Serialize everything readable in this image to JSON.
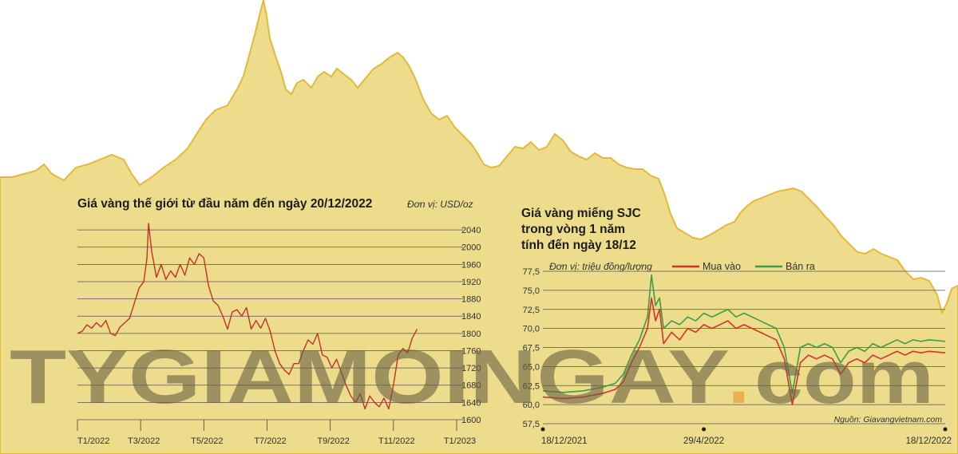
{
  "colors": {
    "background_area": "#ecdc8c",
    "area_outline": "#e3b93a",
    "world_line": "#c4302a",
    "sjc_buy": "#d5322a",
    "sjc_sell": "#3e9b4b",
    "grid": "#555555",
    "watermark_text": "#6b6043",
    "watermark_accent": "#e8922a"
  },
  "watermark": {
    "main": "TYGIAMOINGAY",
    "dot": ".",
    "suffix": "com"
  },
  "chart_data": [
    {
      "type": "line",
      "title": "Giá vàng thế giới từ đầu năm đến ngày 20/12/2022",
      "unit_label": "Đơn vị: USD/oz",
      "xlabel": "",
      "ylabel": "",
      "x_ticks": [
        "T1/2022",
        "T3/2022",
        "T5/2022",
        "T7/2022",
        "T9/2022",
        "T11/2022",
        "T1/2023"
      ],
      "x_range": [
        0,
        12
      ],
      "y_ticks": [
        1600,
        1640,
        1680,
        1720,
        1760,
        1800,
        1840,
        1880,
        1920,
        1960,
        2000,
        2040
      ],
      "ylim": [
        1600,
        2055
      ],
      "grid": true,
      "series": [
        {
          "color": "#c4302a",
          "x": [
            0,
            0.15,
            0.3,
            0.45,
            0.6,
            0.75,
            0.9,
            1.05,
            1.2,
            1.35,
            1.5,
            1.65,
            1.8,
            1.95,
            2.1,
            2.2,
            2.25,
            2.35,
            2.5,
            2.65,
            2.8,
            2.95,
            3.1,
            3.25,
            3.4,
            3.55,
            3.7,
            3.85,
            4.0,
            4.15,
            4.3,
            4.45,
            4.6,
            4.75,
            4.9,
            5.05,
            5.2,
            5.35,
            5.5,
            5.65,
            5.8,
            5.95,
            6.1,
            6.25,
            6.4,
            6.55,
            6.7,
            6.85,
            7.0,
            7.15,
            7.3,
            7.45,
            7.6,
            7.75,
            7.9,
            8.05,
            8.2,
            8.35,
            8.5,
            8.65,
            8.8,
            8.95,
            9.1,
            9.25,
            9.4,
            9.55,
            9.7,
            9.85,
            10.0,
            10.15,
            10.3,
            10.45,
            10.6,
            10.75
          ],
          "values": [
            1800,
            1805,
            1820,
            1812,
            1825,
            1815,
            1830,
            1800,
            1795,
            1815,
            1825,
            1835,
            1870,
            1905,
            1920,
            1975,
            2055,
            1990,
            1930,
            1960,
            1925,
            1945,
            1930,
            1960,
            1935,
            1975,
            1960,
            1985,
            1975,
            1910,
            1875,
            1865,
            1840,
            1810,
            1850,
            1855,
            1840,
            1860,
            1810,
            1830,
            1812,
            1835,
            1805,
            1760,
            1730,
            1715,
            1705,
            1730,
            1730,
            1760,
            1785,
            1775,
            1800,
            1750,
            1745,
            1720,
            1740,
            1710,
            1680,
            1655,
            1640,
            1660,
            1625,
            1655,
            1640,
            1630,
            1650,
            1625,
            1680,
            1750,
            1765,
            1755,
            1790,
            1810
          ]
        }
      ]
    },
    {
      "type": "line",
      "title": [
        "Giá vàng miếng SJC",
        "trong vòng 1 năm",
        "tính đến ngày 18/12"
      ],
      "unit_label": "Đơn vị: triệu đồng/lượng",
      "source": "Nguồn: Giavangvietnam.com",
      "xlabel": "",
      "ylabel": "",
      "x_ticks": [
        "18/12/2021",
        "29/4/2022",
        "18/12/2022"
      ],
      "x_tick_positions": [
        0,
        0.4,
        1
      ],
      "x_range": [
        0,
        1
      ],
      "y_ticks": [
        57.5,
        60.0,
        62.5,
        65.0,
        67.5,
        70.0,
        72.5,
        75.0,
        77.5
      ],
      "ylim": [
        57.5,
        77.5
      ],
      "grid": true,
      "legend": "top",
      "series": [
        {
          "name": "Mua vào",
          "color": "#d5322a",
          "x": [
            0,
            0.05,
            0.1,
            0.15,
            0.18,
            0.2,
            0.22,
            0.24,
            0.26,
            0.27,
            0.28,
            0.29,
            0.3,
            0.32,
            0.34,
            0.36,
            0.38,
            0.4,
            0.42,
            0.44,
            0.46,
            0.48,
            0.5,
            0.52,
            0.54,
            0.56,
            0.58,
            0.6,
            0.62,
            0.64,
            0.66,
            0.68,
            0.7,
            0.72,
            0.74,
            0.76,
            0.78,
            0.8,
            0.82,
            0.84,
            0.86,
            0.88,
            0.9,
            0.92,
            0.94,
            0.96,
            1.0
          ],
          "values": [
            61.0,
            60.8,
            61.0,
            61.5,
            62.0,
            63.0,
            65.5,
            67.5,
            70.0,
            74.0,
            71.0,
            72.5,
            68.0,
            69.5,
            68.5,
            70.0,
            69.5,
            70.5,
            70.0,
            70.5,
            71.0,
            70.0,
            70.5,
            70.0,
            69.5,
            69.0,
            68.5,
            66.0,
            60.0,
            65.5,
            66.5,
            66.0,
            66.5,
            66.0,
            64.0,
            65.5,
            66.0,
            65.5,
            66.5,
            66.0,
            66.5,
            67.0,
            66.5,
            67.0,
            66.8,
            67.0,
            66.8
          ]
        },
        {
          "name": "Bán ra",
          "color": "#3e9b4b",
          "x": [
            0,
            0.05,
            0.1,
            0.15,
            0.18,
            0.2,
            0.22,
            0.24,
            0.26,
            0.27,
            0.28,
            0.29,
            0.3,
            0.32,
            0.34,
            0.36,
            0.38,
            0.4,
            0.42,
            0.44,
            0.46,
            0.48,
            0.5,
            0.52,
            0.54,
            0.56,
            0.58,
            0.6,
            0.62,
            0.64,
            0.66,
            0.68,
            0.7,
            0.72,
            0.74,
            0.76,
            0.78,
            0.8,
            0.82,
            0.84,
            0.86,
            0.88,
            0.9,
            0.92,
            0.94,
            0.96,
            1.0
          ],
          "values": [
            61.8,
            61.6,
            61.8,
            62.3,
            62.8,
            64.0,
            66.5,
            68.5,
            71.5,
            77.0,
            73.0,
            74.0,
            70.0,
            71.0,
            70.5,
            71.5,
            71.0,
            72.0,
            71.5,
            72.0,
            72.5,
            71.5,
            72.0,
            71.5,
            71.0,
            70.5,
            70.0,
            67.5,
            61.5,
            67.5,
            68.0,
            67.5,
            68.0,
            67.5,
            65.5,
            67.0,
            67.5,
            67.0,
            68.0,
            67.5,
            68.0,
            68.5,
            68.0,
            68.5,
            68.3,
            68.5,
            68.3
          ]
        }
      ]
    }
  ]
}
